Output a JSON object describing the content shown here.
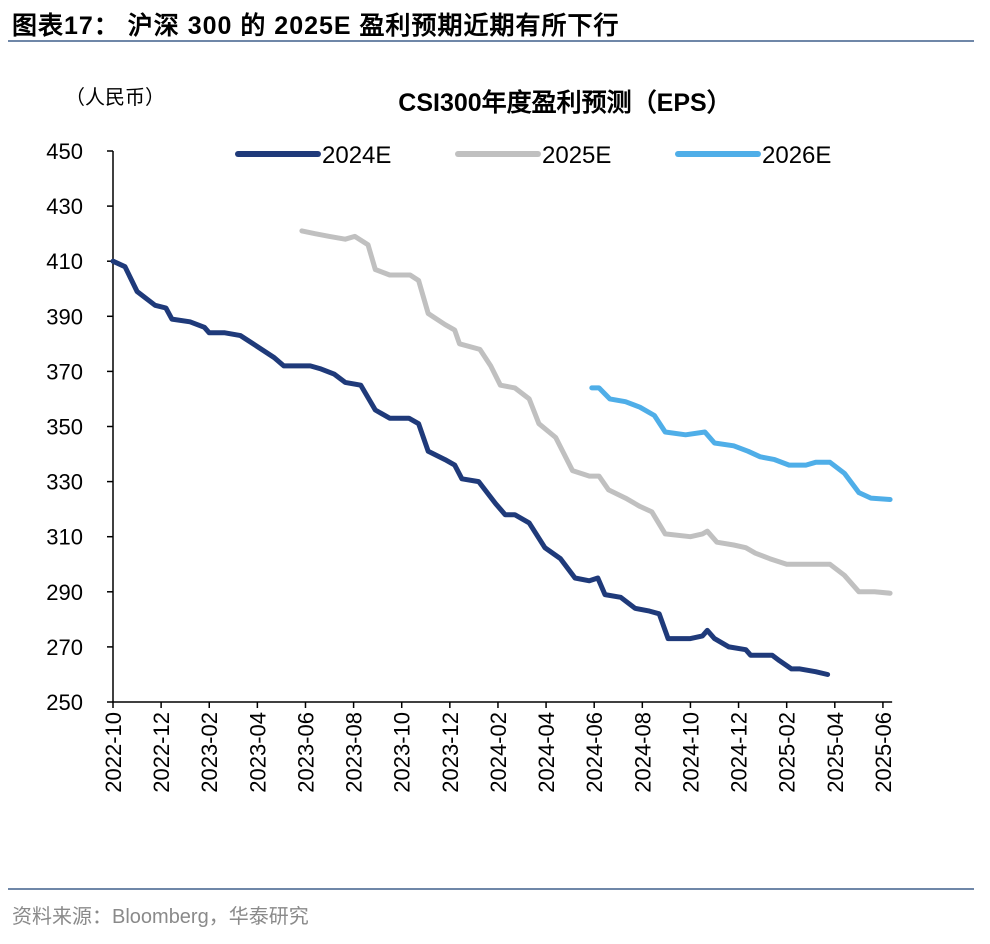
{
  "header": {
    "title": "图表17： 沪深 300 的 2025E 盈利预期近期有所下行"
  },
  "footer": {
    "source": "资料来源：Bloomberg，华泰研究"
  },
  "chart_data": {
    "type": "line",
    "title": "CSI300年度盈利预测（EPS）",
    "unit_label": "（人民币）",
    "xlabel": "",
    "ylabel": "",
    "ylim": [
      250,
      450
    ],
    "yticks": [
      250,
      270,
      290,
      310,
      330,
      350,
      370,
      390,
      410,
      430,
      450
    ],
    "x_unit": "months since 2022-10",
    "xlim": [
      0,
      32.3
    ],
    "xtick_labels": [
      "2022-10",
      "2022-12",
      "2023-02",
      "2023-04",
      "2023-06",
      "2023-08",
      "2023-10",
      "2023-12",
      "2024-02",
      "2024-04",
      "2024-06",
      "2024-08",
      "2024-10",
      "2024-12",
      "2025-02",
      "2025-04",
      "2025-06"
    ],
    "legend_position": "top",
    "grid": false,
    "series": [
      {
        "name": "2024E",
        "color": "#1f3a7a",
        "points": [
          [
            0,
            410
          ],
          [
            0.5,
            408
          ],
          [
            1.0,
            399
          ],
          [
            1.75,
            394
          ],
          [
            2.2,
            393
          ],
          [
            2.45,
            389
          ],
          [
            3.2,
            388
          ],
          [
            3.8,
            386
          ],
          [
            4.0,
            384
          ],
          [
            4.65,
            384
          ],
          [
            5.3,
            383
          ],
          [
            6.0,
            379
          ],
          [
            6.7,
            375
          ],
          [
            7.1,
            372
          ],
          [
            8.2,
            372
          ],
          [
            8.6,
            371
          ],
          [
            9.2,
            369
          ],
          [
            9.65,
            366
          ],
          [
            10.3,
            365
          ],
          [
            10.9,
            356
          ],
          [
            11.5,
            353
          ],
          [
            12.3,
            353
          ],
          [
            12.7,
            351
          ],
          [
            13.1,
            341
          ],
          [
            13.8,
            338
          ],
          [
            14.2,
            336
          ],
          [
            14.5,
            331
          ],
          [
            15.2,
            330
          ],
          [
            15.9,
            322
          ],
          [
            16.3,
            318
          ],
          [
            16.7,
            318
          ],
          [
            17.3,
            315
          ],
          [
            17.95,
            306
          ],
          [
            18.6,
            302
          ],
          [
            19.2,
            295
          ],
          [
            19.8,
            294
          ],
          [
            20.15,
            295
          ],
          [
            20.45,
            289
          ],
          [
            21.1,
            288
          ],
          [
            21.7,
            284
          ],
          [
            22.3,
            283
          ],
          [
            22.7,
            282
          ],
          [
            23.07,
            273
          ],
          [
            24.0,
            273
          ],
          [
            24.5,
            274
          ],
          [
            24.7,
            276
          ],
          [
            25.0,
            273
          ],
          [
            25.6,
            270
          ],
          [
            26.3,
            269
          ],
          [
            26.5,
            267
          ],
          [
            27.4,
            267
          ],
          [
            27.7,
            265
          ],
          [
            28.2,
            262
          ],
          [
            28.55,
            262
          ],
          [
            29.2,
            261
          ],
          [
            29.7,
            260
          ]
        ]
      },
      {
        "name": "2025E",
        "color": "#c0c0c0",
        "points": [
          [
            7.85,
            421
          ],
          [
            8.4,
            420
          ],
          [
            9.0,
            419
          ],
          [
            9.65,
            418
          ],
          [
            10.05,
            419
          ],
          [
            10.6,
            416
          ],
          [
            10.9,
            407
          ],
          [
            11.5,
            405
          ],
          [
            12.35,
            405
          ],
          [
            12.7,
            403
          ],
          [
            13.1,
            391
          ],
          [
            13.8,
            387
          ],
          [
            14.2,
            385
          ],
          [
            14.4,
            380
          ],
          [
            15.25,
            378
          ],
          [
            15.7,
            372
          ],
          [
            16.1,
            365
          ],
          [
            16.7,
            364
          ],
          [
            17.3,
            360
          ],
          [
            17.7,
            351
          ],
          [
            18.4,
            346
          ],
          [
            19.1,
            334
          ],
          [
            19.8,
            332
          ],
          [
            20.2,
            332
          ],
          [
            20.6,
            327
          ],
          [
            21.3,
            324
          ],
          [
            21.9,
            321
          ],
          [
            22.4,
            319
          ],
          [
            22.95,
            311
          ],
          [
            24.0,
            310
          ],
          [
            24.5,
            311
          ],
          [
            24.7,
            312
          ],
          [
            25.1,
            308
          ],
          [
            25.8,
            307
          ],
          [
            26.3,
            306
          ],
          [
            26.7,
            304
          ],
          [
            27.3,
            302
          ],
          [
            28.0,
            300
          ],
          [
            28.55,
            300
          ],
          [
            29.0,
            300
          ],
          [
            29.4,
            300
          ],
          [
            29.8,
            300
          ],
          [
            30.4,
            296
          ],
          [
            31.0,
            290
          ],
          [
            31.65,
            290
          ],
          [
            32.3,
            289.5
          ]
        ]
      },
      {
        "name": "2026E",
        "color": "#4faee8",
        "points": [
          [
            19.9,
            364
          ],
          [
            20.2,
            364
          ],
          [
            20.65,
            360
          ],
          [
            21.3,
            359
          ],
          [
            21.9,
            357
          ],
          [
            22.5,
            354
          ],
          [
            22.95,
            348
          ],
          [
            23.8,
            347
          ],
          [
            24.6,
            348
          ],
          [
            25.0,
            344
          ],
          [
            25.8,
            343
          ],
          [
            26.4,
            341
          ],
          [
            26.9,
            339
          ],
          [
            27.5,
            338
          ],
          [
            28.1,
            336
          ],
          [
            28.8,
            336
          ],
          [
            29.2,
            337
          ],
          [
            29.8,
            337
          ],
          [
            30.4,
            333
          ],
          [
            31.0,
            326
          ],
          [
            31.5,
            324
          ],
          [
            32.3,
            323.5
          ]
        ]
      }
    ]
  }
}
